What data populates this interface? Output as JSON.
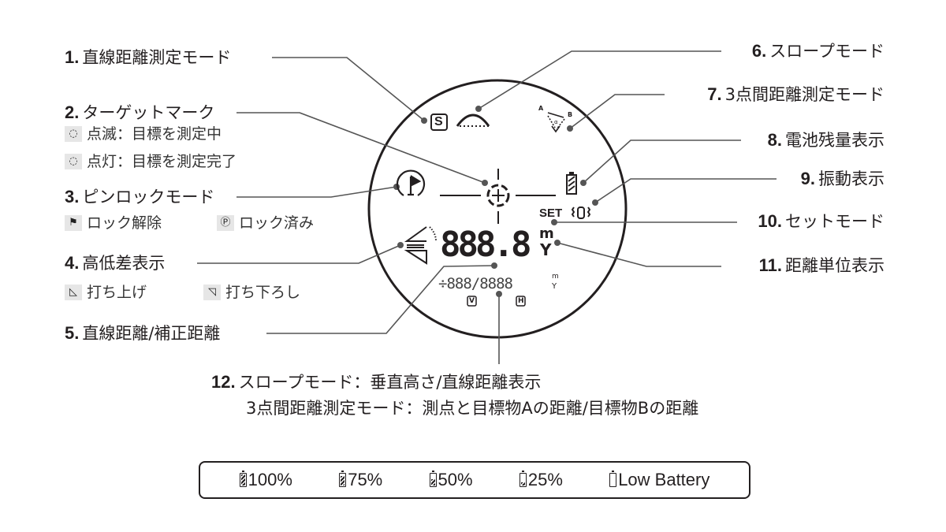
{
  "labels": {
    "l1": {
      "num": "1.",
      "text": "直線距離測定モード"
    },
    "l2": {
      "num": "2.",
      "text": "ターゲットマーク",
      "sub": [
        {
          "icon": "target-blink-icon",
          "text": "点滅：目標を測定中"
        },
        {
          "icon": "target-steady-icon",
          "text": "点灯：目標を測定完了"
        }
      ]
    },
    "l3": {
      "num": "3.",
      "text": "ピンロックモード",
      "sub": [
        {
          "icon": "flag-icon",
          "text": "ロック解除"
        },
        {
          "icon": "flag-circle-icon",
          "text": "ロック済み"
        }
      ]
    },
    "l4": {
      "num": "4.",
      "text": "高低差表示",
      "sub": [
        {
          "icon": "uphill-icon",
          "text": "打ち上げ"
        },
        {
          "icon": "downhill-icon",
          "text": "打ち下ろし"
        }
      ]
    },
    "l5": {
      "num": "5.",
      "text": "直線距離/補正距離"
    },
    "l6": {
      "num": "6.",
      "text": "スロープモード"
    },
    "l7": {
      "num": "7.",
      "text": "3点間距離測定モード"
    },
    "l8": {
      "num": "8.",
      "text": "電池残量表示"
    },
    "l9": {
      "num": "9.",
      "text": "振動表示"
    },
    "l10": {
      "num": "10.",
      "text": "セットモード"
    },
    "l11": {
      "num": "11.",
      "text": "距離単位表示"
    },
    "l12": {
      "num": "12.",
      "text": "スロープモード：垂直高さ/直線距離表示",
      "text2": "3点間距離測定モード：測点と目標物Aの距離/目標物Bの距離"
    }
  },
  "display": {
    "s_mode": "S",
    "point_a": "A",
    "point_b": "B",
    "alpha": "α",
    "set": "SET",
    "main_digits": "888.8",
    "unit_m": "m",
    "unit_y": "Y",
    "sub_digits": "÷888/8888",
    "v": "V",
    "h": "H"
  },
  "battery_legend": [
    {
      "level": 1.0,
      "text": "100%"
    },
    {
      "level": 0.75,
      "text": "75%"
    },
    {
      "level": 0.5,
      "text": "50%"
    },
    {
      "level": 0.25,
      "text": "25%"
    },
    {
      "level": 0,
      "text": "Low Battery"
    }
  ]
}
